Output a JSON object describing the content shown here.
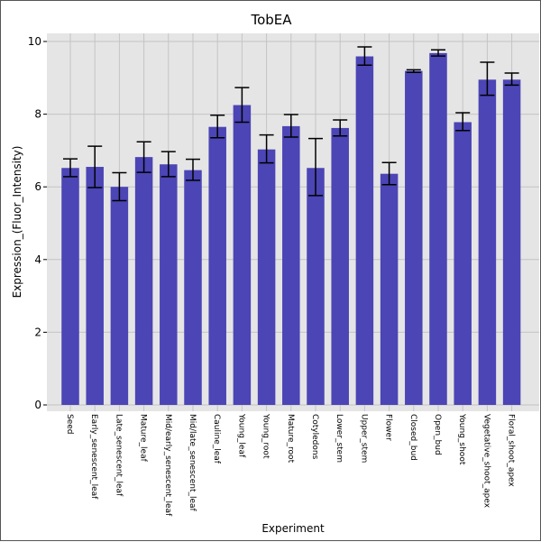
{
  "chart_data": {
    "type": "bar",
    "title": "TobEA",
    "xlabel": "Experiment",
    "ylabel": "Expression_(Fluor_Intensity)",
    "ylim": [
      0,
      10.2
    ],
    "yticks": [
      0,
      2,
      4,
      6,
      8,
      10
    ],
    "grid": true,
    "legend": "none",
    "categories": [
      "Seed",
      "Early_senescent_leaf",
      "Late_senescent_leaf",
      "Mature_leaf",
      "Mid/early_senescent_leaf",
      "Mid/late_senescent_leaf",
      "Cauline_leaf",
      "Young_leaf",
      "Young_root",
      "Mature_root",
      "Cotyledons",
      "Lower_stem",
      "Upper_stem",
      "Flower",
      "Closed_bud",
      "Open_bud",
      "Young_shoot",
      "Vegetative_shoot_apex",
      "Floral_shoot_apex"
    ],
    "values": [
      6.52,
      6.55,
      6.0,
      6.82,
      6.62,
      6.46,
      7.65,
      8.25,
      7.03,
      7.67,
      6.52,
      7.62,
      9.59,
      6.36,
      9.19,
      9.68,
      7.78,
      8.95,
      8.95
    ],
    "error_low": [
      6.28,
      5.98,
      5.62,
      6.4,
      6.28,
      6.18,
      7.35,
      7.78,
      6.66,
      7.37,
      5.76,
      7.4,
      9.35,
      6.06,
      9.15,
      9.6,
      7.55,
      8.52,
      8.8
    ],
    "error_high": [
      6.77,
      7.12,
      6.39,
      7.24,
      6.97,
      6.76,
      7.97,
      8.73,
      7.43,
      7.99,
      7.33,
      7.84,
      9.85,
      6.67,
      9.22,
      9.77,
      8.04,
      9.43,
      9.13
    ],
    "colors": {
      "bar": "#4b45b5",
      "plot_background": "#e5e5e5",
      "grid": "#c4c4c4",
      "error_bar": "#000000"
    }
  }
}
